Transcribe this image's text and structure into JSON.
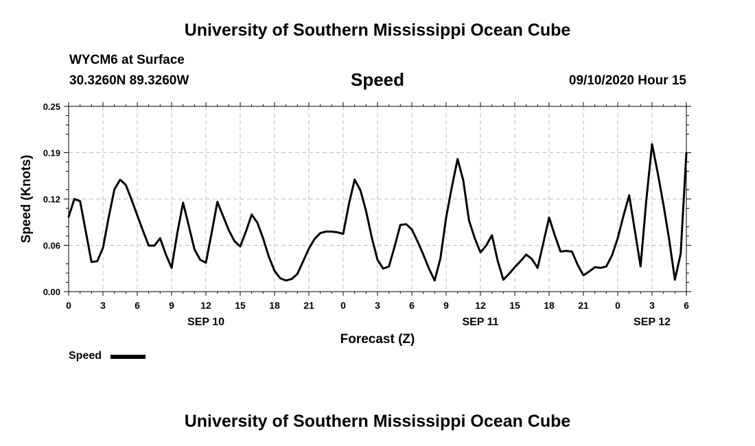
{
  "header": {
    "title": "University of Southern Mississippi Ocean Cube",
    "station": "WYCM6 at Surface",
    "coordinates": "30.3260N 89.3260W",
    "variable": "Speed",
    "datetime": "09/10/2020 Hour 15"
  },
  "footer": {
    "title": "University of Southern Mississippi Ocean Cube"
  },
  "legend": {
    "label": "Speed"
  },
  "chart_data": {
    "type": "line",
    "xlabel": "Forecast (Z)",
    "ylabel": "Speed (Knots)",
    "ylim": [
      0,
      0.25
    ],
    "xlim": [
      0,
      54
    ],
    "grid": true,
    "y_ticks": [
      "0.00",
      "0.06",
      "0.12",
      "0.19",
      "0.25"
    ],
    "x_tick_labels": [
      "0",
      "3",
      "6",
      "9",
      "12",
      "15",
      "18",
      "21",
      "0",
      "3",
      "6",
      "9",
      "12",
      "15",
      "18",
      "21",
      "0",
      "3",
      "6"
    ],
    "date_labels": [
      {
        "label": "SEP 10",
        "hour": 12
      },
      {
        "label": "SEP 11",
        "hour": 36
      },
      {
        "label": "SEP 12",
        "hour": 51
      }
    ],
    "series": [
      {
        "name": "Speed",
        "color": "#000000",
        "points": [
          [
            0,
            0.101
          ],
          [
            0.5,
            0.125
          ],
          [
            1,
            0.122
          ],
          [
            1.5,
            0.081
          ],
          [
            2,
            0.04
          ],
          [
            2.5,
            0.041
          ],
          [
            3,
            0.059
          ],
          [
            3.5,
            0.1
          ],
          [
            4,
            0.138
          ],
          [
            4.5,
            0.151
          ],
          [
            5,
            0.144
          ],
          [
            5.5,
            0.124
          ],
          [
            6,
            0.103
          ],
          [
            6.5,
            0.082
          ],
          [
            7,
            0.062
          ],
          [
            7.5,
            0.062
          ],
          [
            8,
            0.072
          ],
          [
            8.5,
            0.05
          ],
          [
            9,
            0.032
          ],
          [
            9.5,
            0.079
          ],
          [
            10,
            0.12
          ],
          [
            10.5,
            0.089
          ],
          [
            11,
            0.057
          ],
          [
            11.5,
            0.043
          ],
          [
            12,
            0.039
          ],
          [
            12.5,
            0.079
          ],
          [
            13,
            0.121
          ],
          [
            13.5,
            0.102
          ],
          [
            14,
            0.083
          ],
          [
            14.5,
            0.068
          ],
          [
            15,
            0.061
          ],
          [
            15.5,
            0.081
          ],
          [
            16,
            0.104
          ],
          [
            16.5,
            0.093
          ],
          [
            17,
            0.072
          ],
          [
            17.5,
            0.047
          ],
          [
            18,
            0.028
          ],
          [
            18.5,
            0.018
          ],
          [
            19,
            0.015
          ],
          [
            19.5,
            0.017
          ],
          [
            20,
            0.024
          ],
          [
            20.5,
            0.041
          ],
          [
            21,
            0.058
          ],
          [
            21.5,
            0.071
          ],
          [
            22,
            0.079
          ],
          [
            22.5,
            0.081
          ],
          [
            23,
            0.081
          ],
          [
            23.5,
            0.08
          ],
          [
            24,
            0.078
          ],
          [
            24.5,
            0.118
          ],
          [
            25,
            0.151
          ],
          [
            25.5,
            0.137
          ],
          [
            26,
            0.109
          ],
          [
            26.5,
            0.073
          ],
          [
            27,
            0.043
          ],
          [
            27.5,
            0.031
          ],
          [
            28,
            0.034
          ],
          [
            28.5,
            0.061
          ],
          [
            29,
            0.09
          ],
          [
            29.5,
            0.091
          ],
          [
            30,
            0.084
          ],
          [
            30.5,
            0.068
          ],
          [
            31,
            0.05
          ],
          [
            31.5,
            0.031
          ],
          [
            32,
            0.015
          ],
          [
            32.5,
            0.045
          ],
          [
            33,
            0.1
          ],
          [
            33.5,
            0.141
          ],
          [
            34,
            0.179
          ],
          [
            34.5,
            0.15
          ],
          [
            35,
            0.096
          ],
          [
            35.5,
            0.072
          ],
          [
            36,
            0.053
          ],
          [
            36.5,
            0.062
          ],
          [
            37,
            0.076
          ],
          [
            37.5,
            0.042
          ],
          [
            38,
            0.016
          ],
          [
            38.5,
            0.024
          ],
          [
            39,
            0.033
          ],
          [
            39.5,
            0.041
          ],
          [
            40,
            0.05
          ],
          [
            40.5,
            0.044
          ],
          [
            41,
            0.032
          ],
          [
            41.5,
            0.066
          ],
          [
            42,
            0.1
          ],
          [
            42.5,
            0.076
          ],
          [
            43,
            0.054
          ],
          [
            43.5,
            0.055
          ],
          [
            44,
            0.054
          ],
          [
            44.5,
            0.036
          ],
          [
            45,
            0.022
          ],
          [
            45.5,
            0.027
          ],
          [
            46,
            0.033
          ],
          [
            46.5,
            0.032
          ],
          [
            47,
            0.034
          ],
          [
            47.5,
            0.049
          ],
          [
            48,
            0.072
          ],
          [
            48.5,
            0.102
          ],
          [
            49,
            0.13
          ],
          [
            49.5,
            0.082
          ],
          [
            50,
            0.034
          ],
          [
            50.5,
            0.124
          ],
          [
            51,
            0.199
          ],
          [
            51.5,
            0.16
          ],
          [
            52,
            0.117
          ],
          [
            52.5,
            0.07
          ],
          [
            53,
            0.016
          ],
          [
            53.5,
            0.051
          ],
          [
            54,
            0.187
          ]
        ]
      }
    ]
  }
}
